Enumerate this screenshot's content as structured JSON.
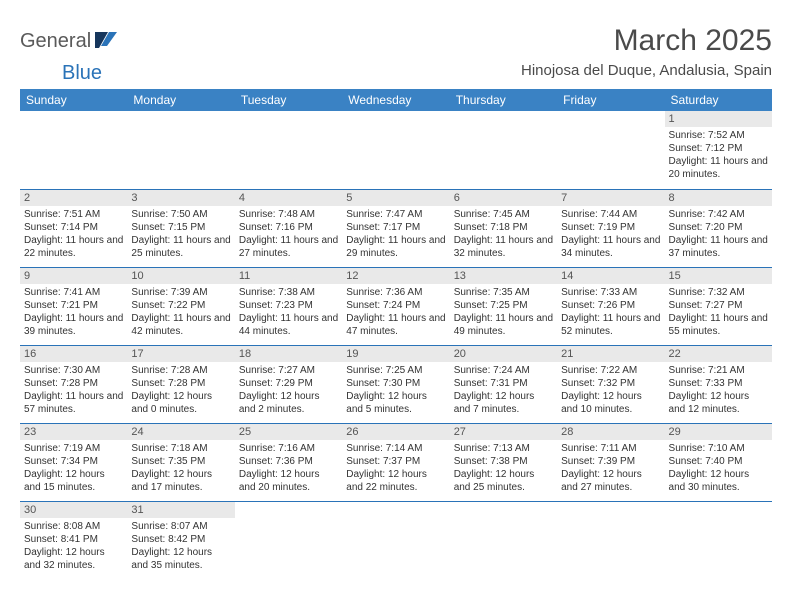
{
  "brand": {
    "part1": "General",
    "part2": "Blue"
  },
  "title": "March 2025",
  "location": "Hinojosa del Duque, Andalusia, Spain",
  "colors": {
    "header_bg": "#3a82c4",
    "header_text": "#ffffff",
    "cell_border": "#2a73b8",
    "daynum_bg": "#e9e9e9",
    "daynum_text": "#555555",
    "body_text": "#333333",
    "title_text": "#4a4a4a",
    "brand_gray": "#5a5a5a",
    "brand_blue": "#2a73b8"
  },
  "weekdays": [
    "Sunday",
    "Monday",
    "Tuesday",
    "Wednesday",
    "Thursday",
    "Friday",
    "Saturday"
  ],
  "labels": {
    "sunrise": "Sunrise:",
    "sunset": "Sunset:",
    "daylight": "Daylight:"
  },
  "weeks": [
    [
      null,
      null,
      null,
      null,
      null,
      null,
      {
        "n": "1",
        "sr": "7:52 AM",
        "ss": "7:12 PM",
        "dl": "11 hours and 20 minutes."
      }
    ],
    [
      {
        "n": "2",
        "sr": "7:51 AM",
        "ss": "7:14 PM",
        "dl": "11 hours and 22 minutes."
      },
      {
        "n": "3",
        "sr": "7:50 AM",
        "ss": "7:15 PM",
        "dl": "11 hours and 25 minutes."
      },
      {
        "n": "4",
        "sr": "7:48 AM",
        "ss": "7:16 PM",
        "dl": "11 hours and 27 minutes."
      },
      {
        "n": "5",
        "sr": "7:47 AM",
        "ss": "7:17 PM",
        "dl": "11 hours and 29 minutes."
      },
      {
        "n": "6",
        "sr": "7:45 AM",
        "ss": "7:18 PM",
        "dl": "11 hours and 32 minutes."
      },
      {
        "n": "7",
        "sr": "7:44 AM",
        "ss": "7:19 PM",
        "dl": "11 hours and 34 minutes."
      },
      {
        "n": "8",
        "sr": "7:42 AM",
        "ss": "7:20 PM",
        "dl": "11 hours and 37 minutes."
      }
    ],
    [
      {
        "n": "9",
        "sr": "7:41 AM",
        "ss": "7:21 PM",
        "dl": "11 hours and 39 minutes."
      },
      {
        "n": "10",
        "sr": "7:39 AM",
        "ss": "7:22 PM",
        "dl": "11 hours and 42 minutes."
      },
      {
        "n": "11",
        "sr": "7:38 AM",
        "ss": "7:23 PM",
        "dl": "11 hours and 44 minutes."
      },
      {
        "n": "12",
        "sr": "7:36 AM",
        "ss": "7:24 PM",
        "dl": "11 hours and 47 minutes."
      },
      {
        "n": "13",
        "sr": "7:35 AM",
        "ss": "7:25 PM",
        "dl": "11 hours and 49 minutes."
      },
      {
        "n": "14",
        "sr": "7:33 AM",
        "ss": "7:26 PM",
        "dl": "11 hours and 52 minutes."
      },
      {
        "n": "15",
        "sr": "7:32 AM",
        "ss": "7:27 PM",
        "dl": "11 hours and 55 minutes."
      }
    ],
    [
      {
        "n": "16",
        "sr": "7:30 AM",
        "ss": "7:28 PM",
        "dl": "11 hours and 57 minutes."
      },
      {
        "n": "17",
        "sr": "7:28 AM",
        "ss": "7:28 PM",
        "dl": "12 hours and 0 minutes."
      },
      {
        "n": "18",
        "sr": "7:27 AM",
        "ss": "7:29 PM",
        "dl": "12 hours and 2 minutes."
      },
      {
        "n": "19",
        "sr": "7:25 AM",
        "ss": "7:30 PM",
        "dl": "12 hours and 5 minutes."
      },
      {
        "n": "20",
        "sr": "7:24 AM",
        "ss": "7:31 PM",
        "dl": "12 hours and 7 minutes."
      },
      {
        "n": "21",
        "sr": "7:22 AM",
        "ss": "7:32 PM",
        "dl": "12 hours and 10 minutes."
      },
      {
        "n": "22",
        "sr": "7:21 AM",
        "ss": "7:33 PM",
        "dl": "12 hours and 12 minutes."
      }
    ],
    [
      {
        "n": "23",
        "sr": "7:19 AM",
        "ss": "7:34 PM",
        "dl": "12 hours and 15 minutes."
      },
      {
        "n": "24",
        "sr": "7:18 AM",
        "ss": "7:35 PM",
        "dl": "12 hours and 17 minutes."
      },
      {
        "n": "25",
        "sr": "7:16 AM",
        "ss": "7:36 PM",
        "dl": "12 hours and 20 minutes."
      },
      {
        "n": "26",
        "sr": "7:14 AM",
        "ss": "7:37 PM",
        "dl": "12 hours and 22 minutes."
      },
      {
        "n": "27",
        "sr": "7:13 AM",
        "ss": "7:38 PM",
        "dl": "12 hours and 25 minutes."
      },
      {
        "n": "28",
        "sr": "7:11 AM",
        "ss": "7:39 PM",
        "dl": "12 hours and 27 minutes."
      },
      {
        "n": "29",
        "sr": "7:10 AM",
        "ss": "7:40 PM",
        "dl": "12 hours and 30 minutes."
      }
    ],
    [
      {
        "n": "30",
        "sr": "8:08 AM",
        "ss": "8:41 PM",
        "dl": "12 hours and 32 minutes."
      },
      {
        "n": "31",
        "sr": "8:07 AM",
        "ss": "8:42 PM",
        "dl": "12 hours and 35 minutes."
      },
      null,
      null,
      null,
      null,
      null
    ]
  ]
}
